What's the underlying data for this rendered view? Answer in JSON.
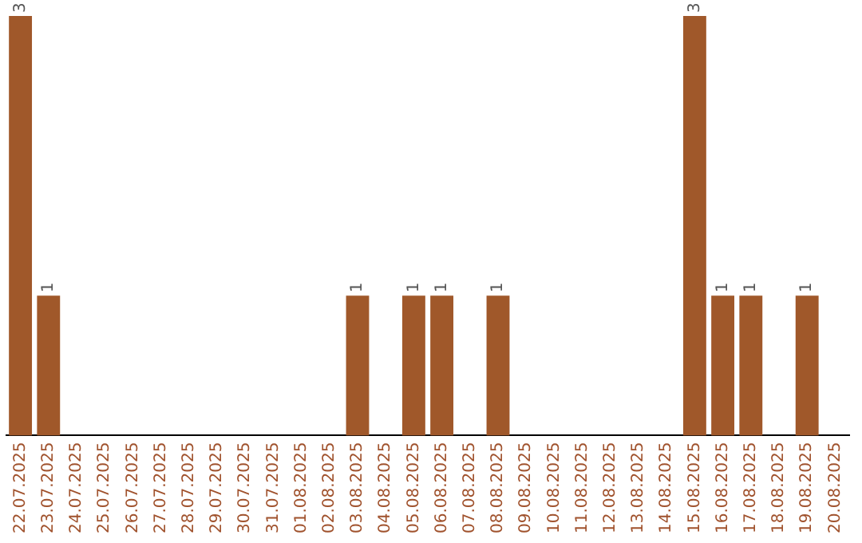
{
  "chart_data": {
    "type": "bar",
    "categories": [
      "22.07.2025",
      "23.07.2025",
      "24.07.2025",
      "25.07.2025",
      "26.07.2025",
      "27.07.2025",
      "28.07.2025",
      "29.07.2025",
      "30.07.2025",
      "31.07.2025",
      "01.08.2025",
      "02.08.2025",
      "03.08.2025",
      "04.08.2025",
      "05.08.2025",
      "06.08.2025",
      "07.08.2025",
      "08.08.2025",
      "09.08.2025",
      "10.08.2025",
      "11.08.2025",
      "12.08.2025",
      "13.08.2025",
      "14.08.2025",
      "15.08.2025",
      "16.08.2025",
      "17.08.2025",
      "18.08.2025",
      "19.08.2025",
      "20.08.2025"
    ],
    "values": [
      3,
      1,
      0,
      0,
      0,
      0,
      0,
      0,
      0,
      0,
      0,
      0,
      1,
      0,
      1,
      1,
      0,
      1,
      0,
      0,
      0,
      0,
      0,
      0,
      3,
      1,
      1,
      0,
      1,
      0
    ],
    "value_labels": [
      "3",
      "1",
      null,
      null,
      null,
      null,
      null,
      null,
      null,
      null,
      null,
      null,
      "1",
      null,
      "1",
      "1",
      null,
      "1",
      null,
      null,
      null,
      null,
      null,
      null,
      "3",
      "1",
      "1",
      null,
      "1",
      null
    ],
    "color": "#a0582a",
    "tick_labels": "x",
    "grid": false,
    "legend": false
  }
}
